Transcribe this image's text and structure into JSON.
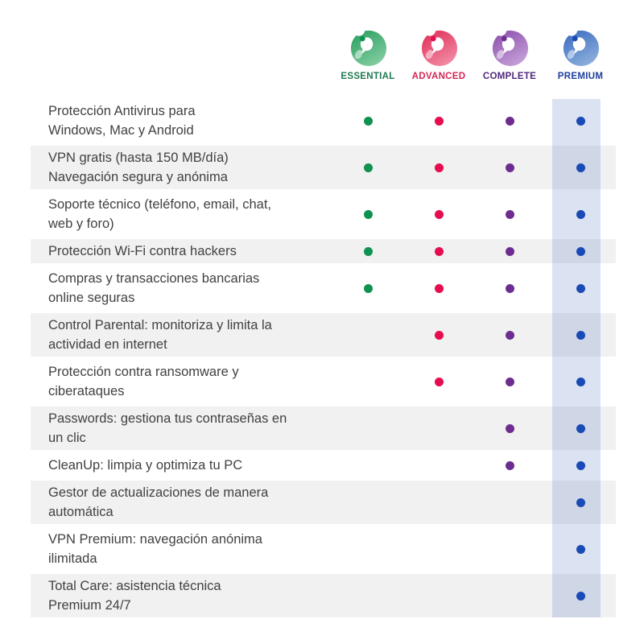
{
  "plans": [
    {
      "label": "ESSENTIAL",
      "label_color": "#1f7a52",
      "icon": "panda-logo",
      "icon_gradient": [
        "#2aa05f",
        "#84cda2"
      ],
      "dot_color": "#0f9150"
    },
    {
      "label": "ADVANCED",
      "label_color": "#d32753",
      "icon": "panda-logo",
      "icon_gradient": [
        "#e03058",
        "#f28ca6"
      ],
      "dot_color": "#e60c4f"
    },
    {
      "label": "COMPLETE",
      "label_color": "#50287d",
      "icon": "panda-logo",
      "icon_gradient": [
        "#8c50ad",
        "#c6a0d8"
      ],
      "dot_color": "#6d2d8f"
    },
    {
      "label": "PREMIUM",
      "label_color": "#1f3f9c",
      "icon": "panda-logo",
      "icon_gradient": [
        "#3a6cc0",
        "#8fb0dc"
      ],
      "dot_color": "#1a4ab5"
    }
  ],
  "chart_data": {
    "type": "table",
    "columns": [
      "ESSENTIAL",
      "ADVANCED",
      "COMPLETE",
      "PREMIUM"
    ],
    "rows": [
      {
        "feature": "Protección Antivirus para\nWindows, Mac y Android",
        "available": [
          1,
          1,
          1,
          1
        ]
      },
      {
        "feature": "VPN gratis (hasta 150 MB/día)\nNavegación segura y anónima",
        "available": [
          1,
          1,
          1,
          1
        ]
      },
      {
        "feature": "Soporte técnico (teléfono, email, chat,\nweb y foro)",
        "available": [
          1,
          1,
          1,
          1
        ]
      },
      {
        "feature": "Protección Wi-Fi contra hackers",
        "available": [
          1,
          1,
          1,
          1
        ]
      },
      {
        "feature": "Compras y transacciones bancarias\nonline seguras",
        "available": [
          1,
          1,
          1,
          1
        ]
      },
      {
        "feature": "Control Parental: monitoriza y limita la\nactividad en internet",
        "available": [
          0,
          1,
          1,
          1
        ]
      },
      {
        "feature": "Protección contra ransomware y\nciberataques",
        "available": [
          0,
          1,
          1,
          1
        ]
      },
      {
        "feature": "Passwords: gestiona tus contraseñas en\nun clic",
        "available": [
          0,
          0,
          1,
          1
        ]
      },
      {
        "feature": "CleanUp: limpia y optimiza tu PC",
        "available": [
          0,
          0,
          1,
          1
        ]
      },
      {
        "feature": "Gestor de actualizaciones de manera\nautomática",
        "available": [
          0,
          0,
          0,
          1
        ]
      },
      {
        "feature": "VPN Premium: navegación anónima\nilimitada",
        "available": [
          0,
          0,
          0,
          1
        ]
      },
      {
        "feature": "Total Care: asistencia técnica\nPremium 24/7",
        "available": [
          0,
          0,
          0,
          1
        ]
      }
    ]
  },
  "colors": {
    "background": "#ffffff",
    "row_alt": "#f1f1f2",
    "premium_band": "rgba(30,75,170,0.16)",
    "feature_text": "#414141"
  }
}
